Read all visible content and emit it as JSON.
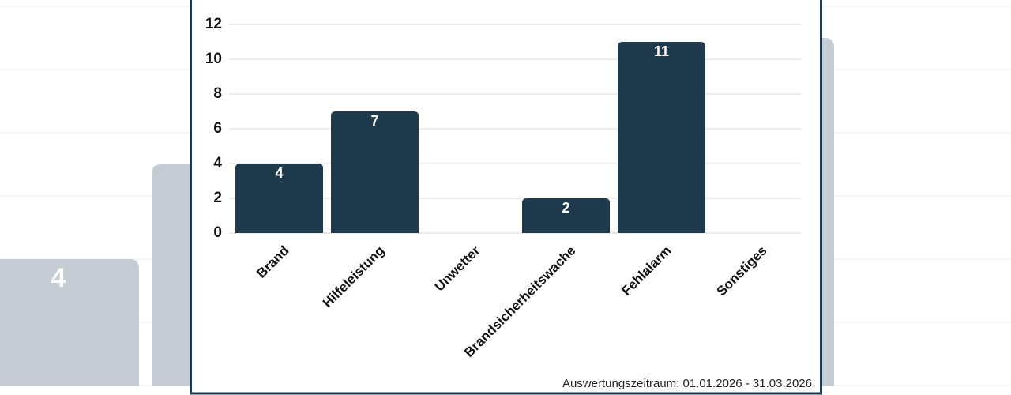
{
  "chart_data": {
    "type": "bar",
    "categories": [
      "Brand",
      "Hilfeleistung",
      "Unwetter",
      "Brandsicherheitswache",
      "Fehlalarm",
      "Sonstiges"
    ],
    "values": [
      4,
      7,
      0,
      2,
      11,
      0
    ],
    "color": "#1f3a4d",
    "ylim": [
      0,
      12
    ],
    "yticks": [
      0,
      2,
      4,
      6,
      8,
      10,
      12
    ],
    "grid": true,
    "footnote": "Auswertungszeitraum: 01.01.2026 - 31.03.2026"
  }
}
